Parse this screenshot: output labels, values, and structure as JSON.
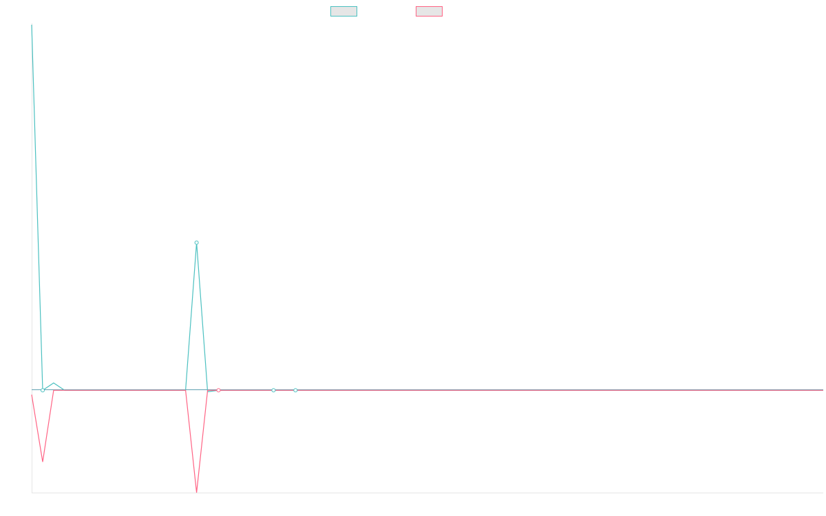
{
  "chart_data": {
    "type": "line",
    "title": "",
    "xlabel": "",
    "ylabel": "",
    "legend": "top-center",
    "grid": false,
    "xlim": [
      0,
      72
    ],
    "ylim": [
      -7,
      25
    ],
    "series": [
      {
        "color": "#4bc0c0",
        "values": [
          25,
          0,
          0.5,
          0,
          0,
          0,
          0,
          0,
          0,
          0,
          0,
          0,
          0,
          0,
          0,
          10.1,
          -0.1,
          0,
          0,
          0,
          0,
          0,
          0,
          0,
          0,
          0,
          0,
          0,
          0,
          0,
          0,
          0,
          0,
          0,
          0,
          0,
          0,
          0,
          0,
          0,
          0,
          0,
          0,
          0,
          0,
          0,
          0,
          0,
          0,
          0,
          0,
          0,
          0,
          0,
          0,
          0,
          0,
          0,
          0,
          0,
          0,
          0,
          0,
          0,
          0,
          0,
          0,
          0,
          0,
          0,
          0,
          0,
          0
        ]
      },
      {
        "color": "#ff6384",
        "values": [
          -0.3,
          -4.9,
          0,
          0,
          0,
          0,
          0,
          0,
          0,
          0,
          0,
          0,
          0,
          0,
          0,
          -7,
          0,
          0,
          0,
          0,
          0,
          0,
          0,
          0,
          0,
          0,
          0,
          0,
          0,
          0,
          0,
          0,
          0,
          0,
          0,
          0,
          0,
          0,
          0,
          0,
          0,
          0,
          0,
          0,
          0,
          0,
          0,
          0,
          0,
          0,
          0,
          0,
          0,
          0,
          0,
          0,
          0,
          0,
          0,
          0,
          0,
          0,
          0,
          0,
          0,
          0,
          0,
          0,
          0,
          0,
          0,
          0,
          0
        ]
      }
    ]
  }
}
